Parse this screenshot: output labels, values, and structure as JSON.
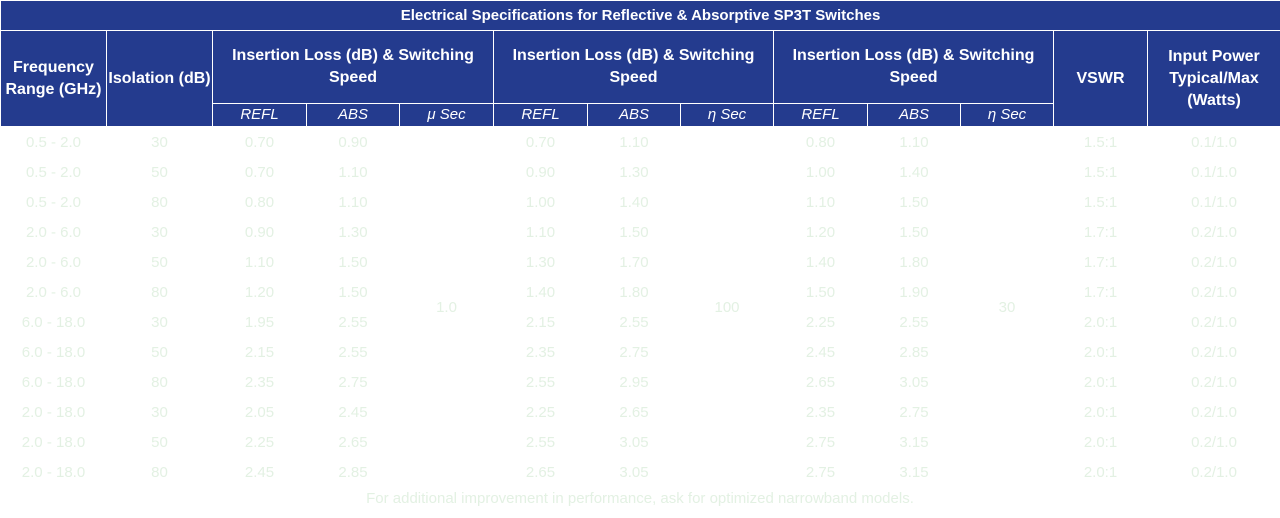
{
  "table": {
    "title": "Electrical Specifications for Reflective & Absorptive SP3T Switches",
    "headers": [
      "Frequency Range (GHz)",
      "Isolation (dB)",
      "Insertion Loss (dB) & Switching Speed",
      "Insertion Loss (dB) & Switching Speed",
      "Insertion Loss (dB) & Switching Speed",
      "VSWR",
      "Input Power Typical/Max (Watts)"
    ],
    "subheaders": [
      "REFL",
      "ABS",
      "μ Sec",
      "REFL",
      "ABS",
      "η Sec",
      "REFL",
      "ABS",
      "η Sec"
    ],
    "speeds": [
      "1.0",
      "100",
      "30"
    ],
    "rows": [
      [
        "0.5 - 2.0",
        "30",
        "0.70",
        "0.90",
        "0.70",
        "1.10",
        "0.80",
        "1.10",
        "1.5:1",
        "0.1/1.0"
      ],
      [
        "0.5 - 2.0",
        "50",
        "0.70",
        "1.10",
        "0.90",
        "1.30",
        "1.00",
        "1.40",
        "1.5:1",
        "0.1/1.0"
      ],
      [
        "0.5 - 2.0",
        "80",
        "0.80",
        "1.10",
        "1.00",
        "1.40",
        "1.10",
        "1.50",
        "1.5:1",
        "0.1/1.0"
      ],
      [
        "2.0 - 6.0",
        "30",
        "0.90",
        "1.30",
        "1.10",
        "1.50",
        "1.20",
        "1.50",
        "1.7:1",
        "0.2/1.0"
      ],
      [
        "2.0 - 6.0",
        "50",
        "1.10",
        "1.50",
        "1.30",
        "1.70",
        "1.40",
        "1.80",
        "1.7:1",
        "0.2/1.0"
      ],
      [
        "2.0 - 6.0",
        "80",
        "1.20",
        "1.50",
        "1.40",
        "1.80",
        "1.50",
        "1.90",
        "1.7:1",
        "0.2/1.0"
      ],
      [
        "6.0 - 18.0",
        "30",
        "1.95",
        "2.55",
        "2.15",
        "2.55",
        "2.25",
        "2.55",
        "2.0:1",
        "0.2/1.0"
      ],
      [
        "6.0 - 18.0",
        "50",
        "2.15",
        "2.55",
        "2.35",
        "2.75",
        "2.45",
        "2.85",
        "2.0:1",
        "0.2/1.0"
      ],
      [
        "6.0 - 18.0",
        "80",
        "2.35",
        "2.75",
        "2.55",
        "2.95",
        "2.65",
        "3.05",
        "2.0:1",
        "0.2/1.0"
      ],
      [
        "2.0 - 18.0",
        "30",
        "2.05",
        "2.45",
        "2.25",
        "2.65",
        "2.35",
        "2.75",
        "2.0:1",
        "0.2/1.0"
      ],
      [
        "2.0 - 18.0",
        "50",
        "2.25",
        "2.65",
        "2.55",
        "3.05",
        "2.75",
        "3.15",
        "2.0:1",
        "0.2/1.0"
      ],
      [
        "2.0 - 18.0",
        "80",
        "2.45",
        "2.85",
        "2.65",
        "3.05",
        "2.75",
        "3.15",
        "2.0:1",
        "0.2/1.0"
      ]
    ],
    "footnote": "For additional improvement in performance, ask for optimized narrowband models."
  }
}
